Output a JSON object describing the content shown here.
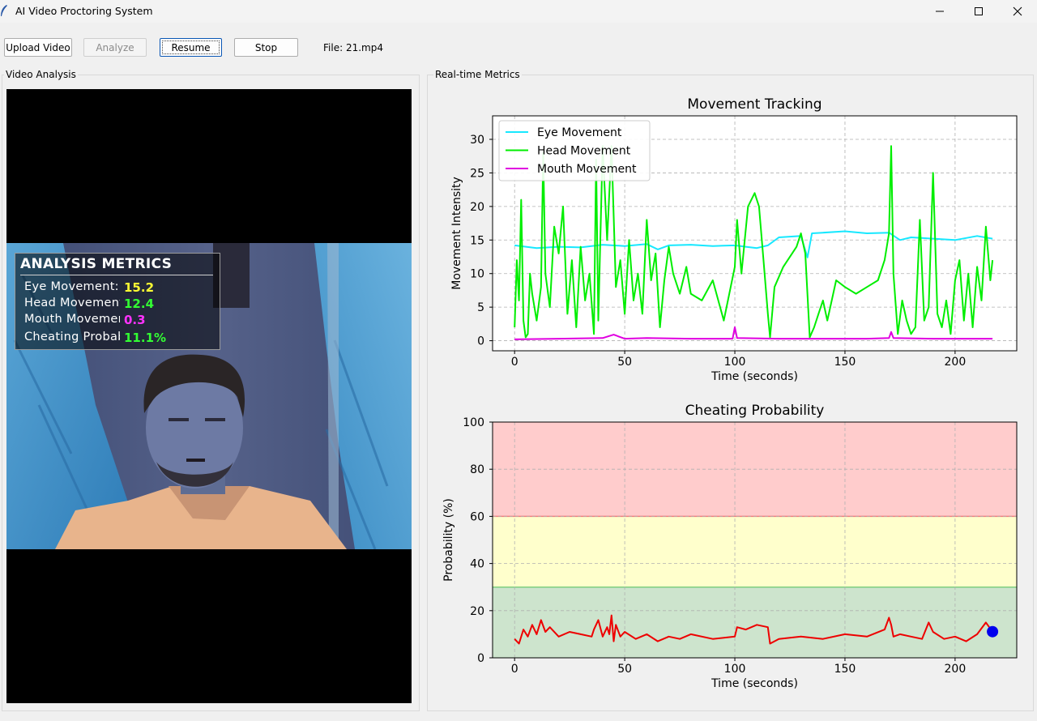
{
  "window": {
    "title": "AI Video Proctoring System"
  },
  "toolbar": {
    "upload_label": "Upload Video",
    "analyze_label": "Analyze",
    "resume_label": "Resume",
    "stop_label": "Stop",
    "file_label": "File: 21.mp4"
  },
  "panels": {
    "video_title": "Video Analysis",
    "metrics_title": "Real-time Metrics"
  },
  "overlay": {
    "title": "ANALYSIS METRICS",
    "rows": [
      {
        "label": "Eye Movement:",
        "value": "15.2",
        "color": "#ffff33"
      },
      {
        "label": "Head Movement:",
        "value": "12.4",
        "color": "#33ff33"
      },
      {
        "label": "Mouth Movement:",
        "value": "0.3",
        "color": "#ff33ff"
      },
      {
        "label": "Cheating Probability:",
        "value": "11.1%",
        "color": "#33ff33"
      }
    ]
  },
  "chart_data": [
    {
      "type": "line",
      "title": "Movement Tracking",
      "xlabel": "Time (seconds)",
      "ylabel": "Movement Intensity",
      "xlim": [
        -10,
        228
      ],
      "ylim": [
        -1.5,
        33.5
      ],
      "xticks": [
        0,
        50,
        100,
        150,
        200
      ],
      "yticks": [
        0,
        5,
        10,
        15,
        20,
        25,
        30
      ],
      "grid": true,
      "legend": "top-left",
      "series": [
        {
          "name": "Eye Movement",
          "color": "#17e8ff",
          "x": [
            0,
            10,
            20,
            30,
            40,
            50,
            60,
            65,
            70,
            80,
            90,
            100,
            105,
            110,
            115,
            120,
            130,
            133,
            135,
            140,
            150,
            160,
            170,
            175,
            180,
            190,
            200,
            210,
            217
          ],
          "y": [
            14.2,
            13.8,
            14.0,
            13.9,
            14.3,
            14.1,
            14.4,
            13.6,
            14.2,
            14.3,
            14.1,
            14.2,
            14.0,
            13.8,
            14.2,
            15.4,
            15.6,
            12.4,
            16.0,
            16.1,
            16.3,
            16.0,
            16.1,
            15.0,
            15.4,
            15.2,
            15.0,
            15.6,
            15.2
          ]
        },
        {
          "name": "Head Movement",
          "color": "#00ee00",
          "x": [
            0,
            1,
            2,
            3,
            4,
            5,
            6,
            7,
            8,
            10,
            12,
            13,
            14,
            16,
            18,
            20,
            22,
            24,
            26,
            28,
            30,
            32,
            34,
            36,
            37,
            38,
            40,
            42,
            44,
            46,
            48,
            50,
            52,
            54,
            56,
            58,
            60,
            62,
            64,
            66,
            68,
            70,
            72,
            75,
            78,
            80,
            85,
            90,
            95,
            100,
            101,
            103,
            106,
            109,
            111,
            113,
            115,
            116,
            118,
            122,
            126,
            128,
            130,
            132,
            134,
            136,
            138,
            140,
            142,
            146,
            150,
            155,
            160,
            165,
            168,
            170,
            171,
            172,
            174,
            176,
            178,
            180,
            182,
            184,
            186,
            188,
            190,
            192,
            194,
            196,
            198,
            200,
            202,
            204,
            206,
            208,
            210,
            212,
            214,
            216,
            217
          ],
          "y": [
            2,
            12,
            6,
            21,
            3,
            0.5,
            1,
            10,
            7,
            3,
            8,
            28,
            10,
            5,
            17,
            13,
            20,
            4,
            12,
            2,
            14,
            6,
            10,
            1,
            27,
            3,
            29,
            15,
            29,
            8,
            12,
            4,
            15,
            6,
            10,
            4,
            18,
            9,
            13,
            2,
            9,
            14,
            10,
            7,
            11,
            7,
            6,
            9,
            3,
            11,
            18,
            10,
            20,
            22,
            20,
            12,
            4,
            0.5,
            8,
            11,
            13,
            14,
            16,
            13,
            0.5,
            2,
            4,
            6,
            3,
            9,
            8,
            7,
            8,
            9,
            12,
            16,
            29,
            10,
            1,
            6,
            3,
            1,
            2,
            18,
            3,
            5,
            25,
            4,
            2,
            6,
            1,
            9,
            12,
            3,
            10,
            2,
            11,
            6,
            17,
            9,
            12
          ]
        },
        {
          "name": "Mouth Movement",
          "color": "#e000e0",
          "x": [
            0,
            20,
            40,
            45,
            50,
            60,
            80,
            99,
            100,
            101,
            120,
            140,
            160,
            170,
            171,
            172,
            190,
            200,
            217
          ],
          "y": [
            0.2,
            0.3,
            0.4,
            0.9,
            0.3,
            0.4,
            0.3,
            0.3,
            2.0,
            0.4,
            0.3,
            0.3,
            0.3,
            0.4,
            1.3,
            0.4,
            0.3,
            0.3,
            0.3
          ]
        }
      ]
    },
    {
      "type": "line",
      "title": "Cheating Probability",
      "xlabel": "Time (seconds)",
      "ylabel": "Probability (%)",
      "xlim": [
        -10,
        228
      ],
      "ylim": [
        0,
        100
      ],
      "xticks": [
        0,
        50,
        100,
        150,
        200
      ],
      "yticks": [
        0,
        20,
        40,
        60,
        80,
        100
      ],
      "grid": true,
      "zones": [
        {
          "from": 0,
          "to": 30,
          "color": "#cde4cd",
          "edge": "#7fcf7f"
        },
        {
          "from": 30,
          "to": 60,
          "color": "#ffffcc",
          "edge": "#f08080"
        },
        {
          "from": 60,
          "to": 100,
          "color": "#ffcccc",
          "edge": null
        }
      ],
      "series": [
        {
          "name": "",
          "color": "#ee0000",
          "x": [
            0,
            2,
            4,
            6,
            8,
            10,
            12,
            14,
            16,
            20,
            25,
            30,
            35,
            36,
            38,
            40,
            42,
            43,
            44,
            45,
            46,
            48,
            50,
            55,
            60,
            65,
            70,
            75,
            80,
            90,
            100,
            101,
            105,
            110,
            115,
            116,
            120,
            130,
            140,
            150,
            160,
            168,
            170,
            171,
            172,
            175,
            180,
            185,
            188,
            190,
            195,
            200,
            205,
            210,
            214,
            217
          ],
          "y": [
            8,
            6,
            12,
            9,
            14,
            10,
            16,
            11,
            13,
            9,
            11,
            10,
            9,
            12,
            16,
            9,
            13,
            10,
            18,
            7,
            14,
            9,
            11,
            8,
            10,
            7,
            9,
            8,
            10,
            8,
            9,
            13,
            12,
            14,
            13,
            6,
            8,
            9,
            8,
            10,
            9,
            12,
            17,
            14,
            9,
            10,
            9,
            8,
            15,
            11,
            8,
            9,
            7,
            10,
            15,
            11.1
          ]
        }
      ],
      "current_point": {
        "x": 217,
        "y": 11.1,
        "color": "#0000ee"
      }
    }
  ]
}
